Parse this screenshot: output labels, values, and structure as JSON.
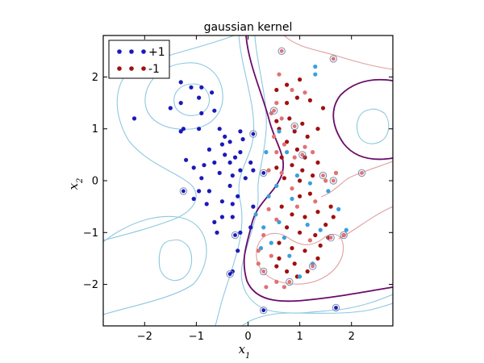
{
  "chart_data": {
    "type": "scatter",
    "title": "gaussian kernel",
    "xlabel": "x",
    "xlabel_sub": "1",
    "ylabel": "x",
    "ylabel_sub": "2",
    "xlim": [
      -2.8,
      2.8
    ],
    "ylim": [
      -2.8,
      2.8
    ],
    "xticks": [
      -2,
      -1,
      0,
      1,
      2
    ],
    "yticks": [
      -2,
      -1,
      0,
      1,
      2
    ],
    "xtick_labels": [
      "−2",
      "−1",
      "0",
      "1",
      "2"
    ],
    "ytick_labels": [
      "−2",
      "−1",
      "0",
      "1",
      "2"
    ],
    "grid": false,
    "legend_position": "top-left",
    "colors": {
      "pos": "#1a1ab8",
      "neg": "#a01010",
      "pos_light": "#3aa0dc",
      "neg_light": "#e07272",
      "contour_pos": "#8ec8e0",
      "contour_neg": "#e0a0a0",
      "boundary": "#6a0a6a",
      "sv_ring": "#7a8ab0"
    },
    "series": [
      {
        "name": "+1",
        "key": "pos",
        "points": [
          [
            -1.3,
            1.9
          ],
          [
            -1.1,
            1.8
          ],
          [
            -0.9,
            1.8
          ],
          [
            -0.7,
            1.7
          ],
          [
            -1.5,
            1.4
          ],
          [
            -1.3,
            1.5
          ],
          [
            -0.95,
            1.6
          ],
          [
            -0.65,
            1.35
          ],
          [
            -0.9,
            1.3
          ],
          [
            -2.2,
            1.2
          ],
          [
            -1.25,
            1.0
          ],
          [
            -1.3,
            0.95
          ],
          [
            -0.95,
            1.0
          ],
          [
            -0.55,
            1.0
          ],
          [
            -0.5,
            0.7
          ],
          [
            -0.15,
            0.95
          ],
          [
            -0.1,
            0.8
          ],
          [
            -0.45,
            0.5
          ],
          [
            -0.35,
            0.35
          ],
          [
            -0.15,
            0.55
          ],
          [
            -0.3,
            0.1
          ],
          [
            -0.15,
            0.2
          ],
          [
            0.05,
            0.35
          ],
          [
            0.1,
            0.2
          ],
          [
            -0.05,
            0.05
          ],
          [
            -0.65,
            0.35
          ],
          [
            -0.85,
            0.3
          ],
          [
            -0.9,
            0.05
          ],
          [
            -0.75,
            -0.2
          ],
          [
            -0.95,
            -0.2
          ],
          [
            -0.35,
            -0.1
          ],
          [
            -0.2,
            -0.3
          ],
          [
            -0.5,
            -0.4
          ],
          [
            -0.3,
            -0.45
          ],
          [
            -1.05,
            -0.35
          ],
          [
            -0.8,
            -0.45
          ],
          [
            -0.5,
            -0.7
          ],
          [
            -0.65,
            -0.8
          ],
          [
            -0.3,
            -0.7
          ],
          [
            -0.6,
            -1.0
          ],
          [
            -0.15,
            -1.0
          ],
          [
            -0.2,
            -1.35
          ],
          [
            -0.3,
            -1.75
          ],
          [
            0.05,
            -0.9
          ],
          [
            -0.45,
            0.85
          ],
          [
            -0.75,
            0.6
          ],
          [
            -1.05,
            0.25
          ],
          [
            -1.2,
            0.4
          ],
          [
            -0.55,
            0.15
          ],
          [
            -0.35,
            0.75
          ],
          [
            -0.25,
            0.45
          ],
          [
            0.1,
            -0.5
          ]
        ]
      },
      {
        "name": "-1",
        "key": "neg",
        "points": [
          [
            0.55,
            1.75
          ],
          [
            0.75,
            1.85
          ],
          [
            1.0,
            1.95
          ],
          [
            0.95,
            1.6
          ],
          [
            0.75,
            1.5
          ],
          [
            1.2,
            1.55
          ],
          [
            1.45,
            1.4
          ],
          [
            0.55,
            1.15
          ],
          [
            0.6,
            1.0
          ],
          [
            0.8,
            1.2
          ],
          [
            1.05,
            1.1
          ],
          [
            1.35,
            1.0
          ],
          [
            1.15,
            0.85
          ],
          [
            0.75,
            0.75
          ],
          [
            0.95,
            0.6
          ],
          [
            0.65,
            0.45
          ],
          [
            0.85,
            0.3
          ],
          [
            1.1,
            0.45
          ],
          [
            1.35,
            0.35
          ],
          [
            0.7,
            0.05
          ],
          [
            1.0,
            0.0
          ],
          [
            1.25,
            0.1
          ],
          [
            1.0,
            -0.3
          ],
          [
            0.65,
            -0.5
          ],
          [
            0.85,
            -0.65
          ],
          [
            1.1,
            -0.7
          ],
          [
            1.35,
            -0.6
          ],
          [
            1.6,
            -0.5
          ],
          [
            0.75,
            -0.9
          ],
          [
            1.0,
            -1.0
          ],
          [
            1.3,
            -1.05
          ],
          [
            1.55,
            -1.1
          ],
          [
            1.85,
            -1.05
          ],
          [
            0.6,
            -1.2
          ],
          [
            0.85,
            -1.3
          ],
          [
            1.1,
            -1.35
          ],
          [
            1.35,
            -1.5
          ],
          [
            0.6,
            -1.5
          ],
          [
            0.9,
            -1.6
          ],
          [
            1.15,
            -1.75
          ],
          [
            0.55,
            -1.65
          ],
          [
            0.75,
            -1.75
          ],
          [
            1.5,
            -0.85
          ],
          [
            1.2,
            -0.25
          ],
          [
            1.4,
            -1.25
          ],
          [
            0.95,
            -1.85
          ],
          [
            1.65,
            -0.7
          ],
          [
            0.9,
            0.95
          ],
          [
            1.05,
            0.2
          ],
          [
            0.55,
            0.25
          ]
        ]
      },
      {
        "name": "",
        "key": "pos_light",
        "points": [
          [
            1.3,
            2.2
          ],
          [
            1.3,
            2.05
          ],
          [
            0.6,
            0.95
          ],
          [
            0.75,
            0.55
          ],
          [
            0.95,
            0.1
          ],
          [
            1.2,
            -0.05
          ],
          [
            0.85,
            -0.35
          ],
          [
            0.6,
            -0.8
          ],
          [
            1.15,
            -0.85
          ],
          [
            1.4,
            -0.95
          ],
          [
            1.9,
            -0.95
          ],
          [
            0.8,
            -1.45
          ],
          [
            1.0,
            -1.85
          ],
          [
            0.3,
            -0.9
          ],
          [
            0.15,
            -0.65
          ],
          [
            0.4,
            -0.3
          ],
          [
            0.45,
            -1.2
          ],
          [
            1.55,
            -0.2
          ],
          [
            0.35,
            0.55
          ],
          [
            0.7,
            -1.1
          ],
          [
            1.25,
            -1.6
          ],
          [
            0.25,
            -1.3
          ],
          [
            0.55,
            -0.1
          ],
          [
            1.75,
            -0.55
          ]
        ]
      },
      {
        "name": "",
        "key": "neg_light",
        "points": [
          [
            0.6,
            2.05
          ],
          [
            0.85,
            1.75
          ],
          [
            1.1,
            1.7
          ],
          [
            0.55,
            1.5
          ],
          [
            0.45,
            1.3
          ],
          [
            0.65,
            1.2
          ],
          [
            0.5,
            0.85
          ],
          [
            0.7,
            0.7
          ],
          [
            0.55,
            0.55
          ],
          [
            0.9,
            0.45
          ],
          [
            0.4,
            0.2
          ],
          [
            0.65,
            0.15
          ],
          [
            0.85,
            -0.15
          ],
          [
            0.4,
            -0.55
          ],
          [
            0.55,
            -0.75
          ],
          [
            0.3,
            -1.05
          ],
          [
            0.2,
            -1.35
          ],
          [
            0.45,
            -1.45
          ],
          [
            0.2,
            -1.6
          ],
          [
            0.35,
            -2.05
          ],
          [
            0.7,
            -2.05
          ],
          [
            0.55,
            -1.95
          ],
          [
            1.2,
            -1.15
          ],
          [
            0.95,
            -0.5
          ],
          [
            1.3,
            -0.4
          ],
          [
            1.5,
            0.0
          ],
          [
            1.7,
            0.15
          ],
          [
            1.1,
            0.65
          ],
          [
            1.25,
            0.55
          ]
        ]
      }
    ],
    "support_vectors": {
      "pos": [
        [
          0.1,
          0.9
        ],
        [
          0.3,
          0.15
        ],
        [
          -1.25,
          -0.2
        ],
        [
          -0.25,
          -1.05
        ],
        [
          -0.35,
          -1.8
        ],
        [
          0.3,
          -2.5
        ],
        [
          1.7,
          -2.45
        ]
      ],
      "neg": [
        [
          0.5,
          1.35
        ],
        [
          0.9,
          1.05
        ],
        [
          1.05,
          0.5
        ],
        [
          1.45,
          0.1
        ],
        [
          1.65,
          0.0
        ],
        [
          2.2,
          0.15
        ],
        [
          1.6,
          -1.1
        ],
        [
          1.85,
          -1.05
        ],
        [
          1.25,
          -1.65
        ],
        [
          0.8,
          -1.95
        ],
        [
          0.3,
          -1.75
        ],
        [
          0.65,
          2.5
        ],
        [
          1.65,
          2.35
        ]
      ]
    },
    "legend": [
      {
        "label": "+1",
        "key": "pos"
      },
      {
        "label": "-1",
        "key": "neg"
      }
    ]
  }
}
